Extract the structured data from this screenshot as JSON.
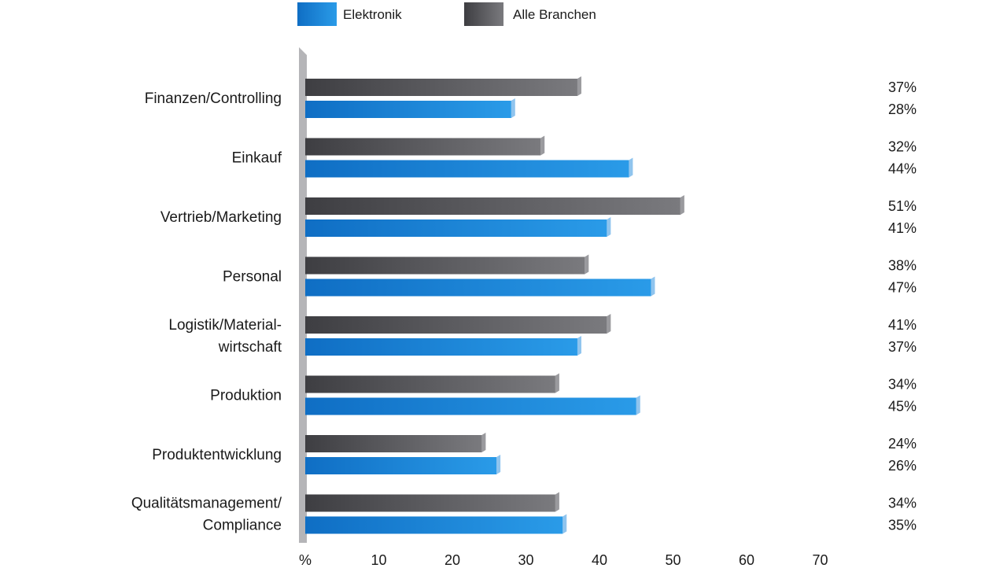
{
  "chart_data": {
    "type": "bar",
    "orientation": "horizontal",
    "legend": [
      {
        "name": "Elektronik",
        "color": "#1a86d8"
      },
      {
        "name": "Alle Branchen",
        "color": "#5a5a5e"
      }
    ],
    "legend_position": "top",
    "categories": [
      [
        "Finanzen/Controlling"
      ],
      [
        "Einkauf"
      ],
      [
        "Vertrieb/Marketing"
      ],
      [
        "Personal"
      ],
      [
        "Logistik/Material-",
        "wirtschaft"
      ],
      [
        "Produktion"
      ],
      [
        "Produktentwicklung"
      ],
      [
        "Qualitätsmanagement/",
        "Compliance"
      ]
    ],
    "series": [
      {
        "name": "Alle Branchen",
        "color": "#5a5a5e",
        "values": [
          37,
          32,
          51,
          38,
          41,
          34,
          24,
          34
        ],
        "labels": [
          "37%",
          "32%",
          "51%",
          "38%",
          "41%",
          "34%",
          "24%",
          "34%"
        ]
      },
      {
        "name": "Elektronik",
        "color": "#1a86d8",
        "values": [
          28,
          44,
          41,
          47,
          37,
          45,
          26,
          35
        ],
        "labels": [
          "28%",
          "44%",
          "41%",
          "47%",
          "37%",
          "45%",
          "26%",
          "35%"
        ]
      }
    ],
    "x_ticks": [
      "%",
      "10",
      "20",
      "30",
      "40",
      "50",
      "60",
      "70"
    ],
    "xlim": [
      0,
      70
    ],
    "grid": false
  }
}
